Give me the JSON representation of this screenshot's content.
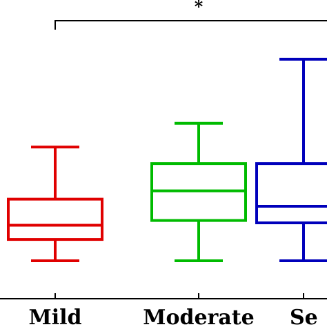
{
  "chart_data": {
    "type": "box",
    "categories": [
      "Mild",
      "Moderate",
      "Se"
    ],
    "colors": [
      "#e00000",
      "#00bb00",
      "#0000bb"
    ],
    "boxes": [
      {
        "category": "Mild",
        "whisker_low": 0.8,
        "q1": 1.7,
        "median": 2.3,
        "q3": 3.4,
        "whisker_high": 5.6
      },
      {
        "category": "Moderate",
        "whisker_low": 0.8,
        "q1": 2.5,
        "median": 3.75,
        "q3": 4.9,
        "whisker_high": 6.6
      },
      {
        "category": "Se",
        "whisker_low": 0.8,
        "q1": 2.4,
        "median": 3.1,
        "q3": 4.9,
        "whisker_high": 9.3
      }
    ],
    "ylim": [
      -0.8,
      11.8
    ],
    "grid": false,
    "significance": [
      {
        "from": "Mild",
        "to": "Se",
        "label": "*"
      }
    ]
  }
}
